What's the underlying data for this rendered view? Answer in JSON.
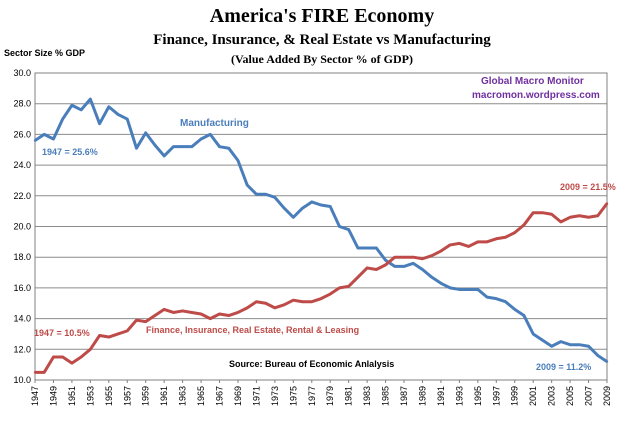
{
  "chart_data": {
    "type": "line",
    "title": "America's FIRE Economy",
    "subtitle": "Finance, Insurance, & Real Estate vs Manufacturing",
    "subtitle2": "(Value Added By Sector % of GDP)",
    "ylabel": "Sector Size % GDP",
    "xlabel": "",
    "ylim": [
      10,
      30
    ],
    "yticks": [
      10,
      12,
      14,
      16,
      18,
      20,
      22,
      24,
      26,
      28,
      30
    ],
    "ytick_labels": [
      "10.0",
      "12.0",
      "14.0",
      "16.0",
      "18.0",
      "20.0",
      "22.0",
      "24.0",
      "26.0",
      "28.0",
      "30.0"
    ],
    "xlim": [
      1947,
      2009
    ],
    "xticks": [
      1947,
      1949,
      1951,
      1953,
      1955,
      1957,
      1959,
      1961,
      1963,
      1965,
      1967,
      1969,
      1971,
      1973,
      1975,
      1977,
      1979,
      1981,
      1983,
      1985,
      1987,
      1989,
      1991,
      1993,
      1995,
      1997,
      1999,
      2001,
      2003,
      2005,
      2007,
      2009
    ],
    "xtick_labels": [
      "1947",
      "1949",
      "1951",
      "1953",
      "1955",
      "1957",
      "1959",
      "1961",
      "1963",
      "1965",
      "1967",
      "1969",
      "1971",
      "1973",
      "1975",
      "1977",
      "1979",
      "1981",
      "1983",
      "1985",
      "1987",
      "1989",
      "1991",
      "1993",
      "1995",
      "1997",
      "1999",
      "2001",
      "2003",
      "2005",
      "2007",
      "2009"
    ],
    "grid": true,
    "x": [
      1947,
      1948,
      1949,
      1950,
      1951,
      1952,
      1953,
      1954,
      1955,
      1956,
      1957,
      1958,
      1959,
      1960,
      1961,
      1962,
      1963,
      1964,
      1965,
      1966,
      1967,
      1968,
      1969,
      1970,
      1971,
      1972,
      1973,
      1974,
      1975,
      1976,
      1977,
      1978,
      1979,
      1980,
      1981,
      1982,
      1983,
      1984,
      1985,
      1986,
      1987,
      1988,
      1989,
      1990,
      1991,
      1992,
      1993,
      1994,
      1995,
      1996,
      1997,
      1998,
      1999,
      2000,
      2001,
      2002,
      2003,
      2004,
      2005,
      2006,
      2007,
      2008,
      2009
    ],
    "series": [
      {
        "name": "Manufacturing",
        "color": "#4a7ebb",
        "values": [
          25.6,
          26.0,
          25.7,
          27.0,
          27.9,
          27.6,
          28.3,
          26.7,
          27.8,
          27.3,
          27.0,
          25.1,
          26.1,
          25.3,
          24.6,
          25.2,
          25.2,
          25.2,
          25.7,
          26.0,
          25.2,
          25.1,
          24.3,
          22.7,
          22.1,
          22.1,
          21.9,
          21.2,
          20.6,
          21.2,
          21.6,
          21.4,
          21.3,
          20.0,
          19.8,
          18.6,
          18.6,
          18.6,
          17.8,
          17.4,
          17.4,
          17.6,
          17.2,
          16.7,
          16.3,
          16.0,
          15.9,
          15.9,
          15.9,
          15.4,
          15.3,
          15.1,
          14.6,
          14.2,
          13.0,
          12.6,
          12.2,
          12.5,
          12.3,
          12.3,
          12.2,
          11.6,
          11.2
        ]
      },
      {
        "name": "Finance, Insurance, Real Estate, Rental  & Leasing",
        "color": "#be4b48",
        "values": [
          10.5,
          10.5,
          11.5,
          11.5,
          11.1,
          11.5,
          12.0,
          12.9,
          12.8,
          13.0,
          13.2,
          13.9,
          13.8,
          14.2,
          14.6,
          14.4,
          14.5,
          14.4,
          14.3,
          14.0,
          14.3,
          14.2,
          14.4,
          14.7,
          15.1,
          15.0,
          14.7,
          14.9,
          15.2,
          15.1,
          15.1,
          15.3,
          15.6,
          16.0,
          16.1,
          16.7,
          17.3,
          17.2,
          17.5,
          18.0,
          18.0,
          18.0,
          17.9,
          18.1,
          18.4,
          18.8,
          18.9,
          18.7,
          19.0,
          19.0,
          19.2,
          19.3,
          19.6,
          20.1,
          20.9,
          20.9,
          20.8,
          20.3,
          20.6,
          20.7,
          20.6,
          20.7,
          21.5
        ]
      }
    ],
    "annotations": {
      "manufacturing_label": "Manufacturing",
      "fire_label": "Finance, Insurance, Real Estate, Rental  & Leasing",
      "mfg_1947": "1947 = 25.6%",
      "mfg_2009": "2009 = 11.2%",
      "fire_1947": "1947 = 10.5%",
      "fire_2009": "2009 = 21.5%",
      "source": "Source:  Bureau of Economic Anlalysis",
      "brand_name": "Global Macro Monitor",
      "brand_url": "macromon.wordpress.com"
    },
    "colors": {
      "manufacturing": "#4a7ebb",
      "fire": "#be4b48",
      "brand": "#7030a0",
      "grid": "#8c8c8c"
    }
  }
}
